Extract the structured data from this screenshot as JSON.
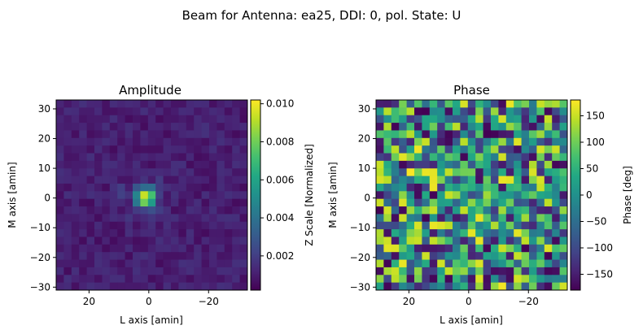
{
  "figure": {
    "title": "Beam for Antenna: ea25, DDI: 0, pol. State: U"
  },
  "chart_data": [
    {
      "type": "heatmap",
      "title": "Amplitude",
      "xlabel": "L axis [amin]",
      "ylabel": "M axis [amin]",
      "xlim": [
        31,
        -33
      ],
      "ylim": [
        -31,
        33
      ],
      "xticks": [
        20,
        0,
        -20
      ],
      "yticks": [
        -30,
        -20,
        -10,
        0,
        10,
        20,
        30
      ],
      "grid": false,
      "colormap": "viridis",
      "colorbar": {
        "label": "Z Scale [Normalized]",
        "range": [
          0.0002,
          0.0102
        ],
        "ticks": [
          0.002,
          0.004,
          0.006,
          0.008,
          0.01
        ],
        "tick_labels": [
          "0.002",
          "0.004",
          "0.006",
          "0.008",
          "0.010"
        ]
      },
      "grid_size": [
        25,
        25
      ],
      "description_values": "low-level noise ~0.0005-0.0016 everywhere; bright core near L=0..3, M=-3..3 with peak ~0.010"
    },
    {
      "type": "heatmap",
      "title": "Phase",
      "xlabel": "L axis [amin]",
      "ylabel": "M axis [amin]",
      "xlim": [
        31,
        -33
      ],
      "ylim": [
        -31,
        33
      ],
      "xticks": [
        20,
        0,
        -20
      ],
      "yticks": [
        -30,
        -20,
        -10,
        0,
        10,
        20,
        30
      ],
      "grid": false,
      "colormap": "viridis",
      "colorbar": {
        "label": "Phase [deg]",
        "range": [
          -180,
          180
        ],
        "ticks": [
          150,
          100,
          50,
          0,
          -50,
          -100,
          -150
        ],
        "tick_labels": [
          "150",
          "100",
          "50",
          "0",
          "−50",
          "−100",
          "−150"
        ]
      },
      "grid_size": [
        25,
        25
      ],
      "description_values": "phase values spread across -180..180 deg with no clear structure"
    }
  ]
}
